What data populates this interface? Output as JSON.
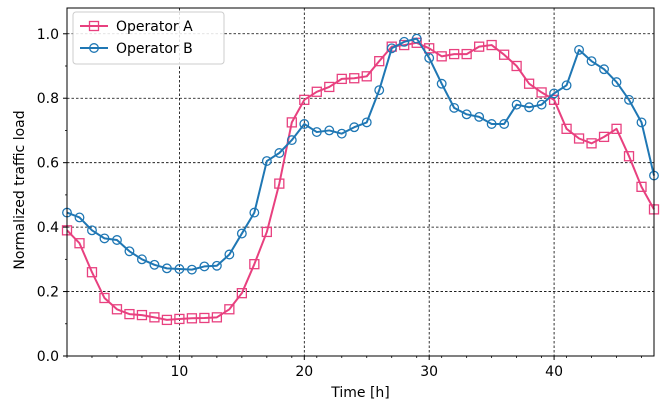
{
  "chart_data": {
    "type": "line",
    "title": "",
    "xlabel": "Time [h]",
    "ylabel": "Normalized traffic load",
    "xlim": [
      1,
      48
    ],
    "ylim": [
      0,
      1.08
    ],
    "xticks": [
      10,
      20,
      30,
      40
    ],
    "yticks": [
      0.0,
      0.2,
      0.4,
      0.6,
      0.8,
      1.0
    ],
    "ytick_labels": [
      "0.0",
      "0.2",
      "0.4",
      "0.6",
      "0.8",
      "1.0"
    ],
    "grid": true,
    "legend": "top-left",
    "x": [
      1,
      2,
      3,
      4,
      5,
      6,
      7,
      8,
      9,
      10,
      11,
      12,
      13,
      14,
      15,
      16,
      17,
      18,
      19,
      20,
      21,
      22,
      23,
      24,
      25,
      26,
      27,
      28,
      29,
      30,
      31,
      32,
      33,
      34,
      35,
      36,
      37,
      38,
      39,
      40,
      41,
      42,
      43,
      44,
      45,
      46,
      47,
      48
    ],
    "series": [
      {
        "name": "Operator A",
        "color": "#e8407f",
        "marker": "square",
        "values": [
          0.39,
          0.35,
          0.26,
          0.18,
          0.145,
          0.13,
          0.127,
          0.12,
          0.112,
          0.115,
          0.117,
          0.118,
          0.12,
          0.145,
          0.195,
          0.285,
          0.385,
          0.535,
          0.725,
          0.795,
          0.82,
          0.835,
          0.86,
          0.862,
          0.868,
          0.915,
          0.96,
          0.965,
          0.972,
          0.955,
          0.93,
          0.937,
          0.937,
          0.96,
          0.965,
          0.935,
          0.9,
          0.845,
          0.818,
          0.795,
          0.705,
          0.675,
          0.66,
          0.68,
          0.705,
          0.62,
          0.525,
          0.455
        ]
      },
      {
        "name": "Operator B",
        "color": "#1f77b4",
        "marker": "circle",
        "values": [
          0.445,
          0.43,
          0.39,
          0.365,
          0.36,
          0.325,
          0.3,
          0.283,
          0.272,
          0.27,
          0.268,
          0.278,
          0.28,
          0.315,
          0.38,
          0.445,
          0.605,
          0.63,
          0.67,
          0.72,
          0.695,
          0.7,
          0.69,
          0.71,
          0.725,
          0.825,
          0.955,
          0.975,
          0.985,
          0.925,
          0.845,
          0.77,
          0.75,
          0.742,
          0.72,
          0.72,
          0.78,
          0.772,
          0.78,
          0.815,
          0.84,
          0.95,
          0.915,
          0.89,
          0.85,
          0.795,
          0.725,
          0.56
        ]
      }
    ]
  }
}
